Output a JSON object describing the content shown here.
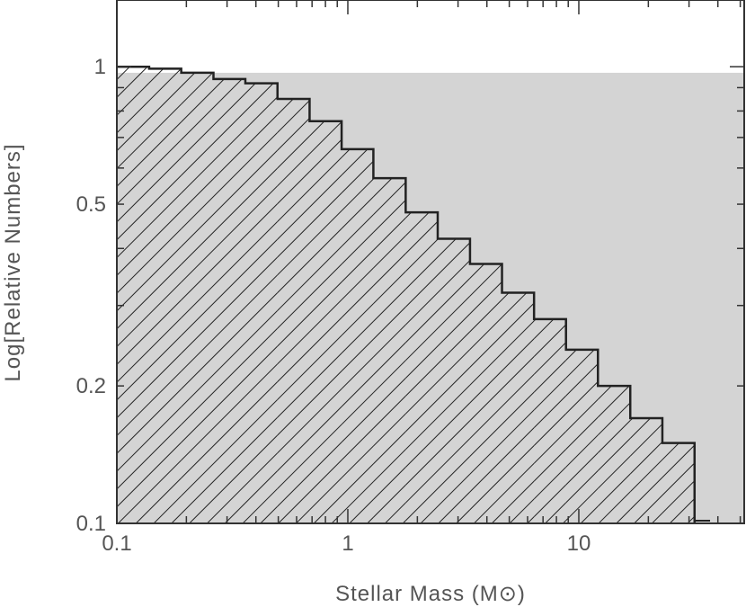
{
  "chart_data": {
    "type": "histogram",
    "xlabel": "Stellar Mass (M⊙)",
    "ylabel": "Log[Relative Numbers]",
    "x_scale": "log",
    "y_scale": "log",
    "xlim": [
      0.1,
      52
    ],
    "ylim": [
      0.1,
      1.4
    ],
    "x_ticks": [
      {
        "value": 0.1,
        "label": "0.1"
      },
      {
        "value": 1,
        "label": "1"
      },
      {
        "value": 10,
        "label": "10"
      }
    ],
    "y_ticks": [
      {
        "value": 0.1,
        "label": "0.1"
      },
      {
        "value": 0.2,
        "label": "0.2"
      },
      {
        "value": 0.5,
        "label": "0.5"
      },
      {
        "value": 1,
        "label": "1"
      }
    ],
    "grid": false,
    "series": [
      {
        "style": "gray-filled",
        "color": "#d4d4d4",
        "bin_edges": [
          0.1,
          52
        ],
        "values": [
          0.97
        ]
      },
      {
        "style": "hatched",
        "color": "#222222",
        "bin_edges": [
          0.1,
          0.138,
          0.19,
          0.262,
          0.36,
          0.496,
          0.683,
          0.94,
          1.29,
          1.78,
          2.45,
          3.38,
          4.65,
          6.4,
          8.8,
          12.1,
          16.7,
          23.0,
          31.7
        ],
        "values": [
          1.0,
          0.99,
          0.97,
          0.94,
          0.92,
          0.85,
          0.76,
          0.66,
          0.57,
          0.48,
          0.42,
          0.37,
          0.32,
          0.28,
          0.24,
          0.2,
          0.17,
          0.15
        ]
      }
    ]
  }
}
